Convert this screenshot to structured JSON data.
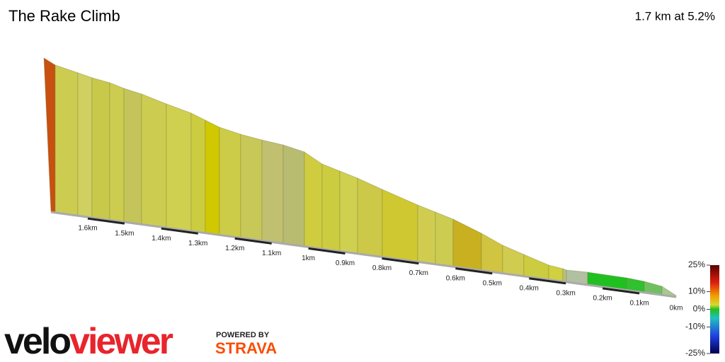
{
  "chart_data": {
    "type": "profile",
    "title": "The Rake Climb",
    "subtitle": "1.7 km at 5.2%",
    "xticks": [
      {
        "value": 1.6,
        "label": "1.6km"
      },
      {
        "value": 1.5,
        "label": "1.5km"
      },
      {
        "value": 1.4,
        "label": "1.4km"
      },
      {
        "value": 1.3,
        "label": "1.3km"
      },
      {
        "value": 1.2,
        "label": "1.2km"
      },
      {
        "value": 1.1,
        "label": "1.1km"
      },
      {
        "value": 1,
        "label": "1km"
      },
      {
        "value": 0.9,
        "label": "0.9km"
      },
      {
        "value": 0.8,
        "label": "0.8km"
      },
      {
        "value": 0.7,
        "label": "0.7km"
      },
      {
        "value": 0.6,
        "label": "0.6km"
      },
      {
        "value": 0.5,
        "label": "0.5km"
      },
      {
        "value": 0.4,
        "label": "0.4km"
      },
      {
        "value": 0.3,
        "label": "0.3km"
      },
      {
        "value": 0.2,
        "label": "0.2km"
      },
      {
        "value": 0.1,
        "label": "0.1km"
      },
      {
        "value": 0,
        "label": "0km"
      }
    ],
    "xlim": [
      1.7,
      0
    ],
    "colorbar_ticks": [
      {
        "value": 25,
        "label": "25%"
      },
      {
        "value": 10,
        "label": "10%"
      },
      {
        "value": 0,
        "label": "0%"
      },
      {
        "value": -10,
        "label": "-10%"
      },
      {
        "value": -25,
        "label": "-25%"
      }
    ],
    "colorbar_lim": [
      -25,
      25
    ]
  },
  "branding": {
    "logo_a": "velo",
    "logo_b": "viewer",
    "powered": "POWERED BY",
    "strava": "STRAVA"
  }
}
